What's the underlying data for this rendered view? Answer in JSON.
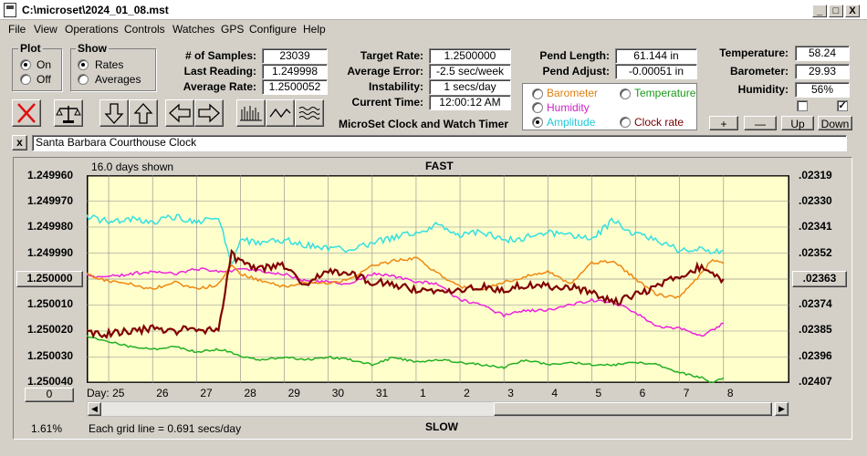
{
  "window": {
    "title": "C:\\microset\\2024_01_08.mst",
    "min": "_",
    "max": "□",
    "close": "X"
  },
  "menu": [
    "File",
    "View",
    "Operations",
    "Controls",
    "Watches",
    "GPS",
    "Configure",
    "Help"
  ],
  "plot_group": {
    "label": "Plot",
    "on": "On",
    "off": "Off",
    "selected": "On"
  },
  "show_group": {
    "label": "Show",
    "rates": "Rates",
    "averages": "Averages",
    "selected": "Rates"
  },
  "stats": {
    "samples_label": "# of Samples:",
    "samples": "23039",
    "last_reading_label": "Last Reading:",
    "last_reading": "1.249998",
    "average_rate_label": "Average Rate:",
    "average_rate": "1.2500052"
  },
  "targets": {
    "target_rate_label": "Target Rate:",
    "target_rate": "1.2500000",
    "average_error_label": "Average Error:",
    "average_error": "-2.5 sec/week",
    "instability_label": "Instability:",
    "instability": "1 secs/day",
    "current_time_label": "Current Time:",
    "current_time": "12:00:12 AM"
  },
  "app_name": "MicroSet Clock and Watch Timer",
  "pend": {
    "length_label": "Pend Length:",
    "length": "61.144 in",
    "adjust_label": "Pend Adjust:",
    "adjust": "-0.00051 in"
  },
  "series_select": {
    "barometer": "Barometer",
    "temperature": "Temperature",
    "humidity": "Humidity",
    "amplitude": "Amplitude",
    "clock_rate": "Clock rate",
    "selected": "Amplitude"
  },
  "environment": {
    "temperature_label": "Temperature:",
    "temperature": "58.24",
    "barometer_label": "Barometer:",
    "barometer": "29.93",
    "humidity_label": "Humidity:",
    "humidity": "56%",
    "check1": "",
    "check2": "✓"
  },
  "scale_buttons": {
    "plus": "+",
    "minus": "—",
    "up": "Up",
    "down": "Down"
  },
  "clock_name": {
    "close": "x",
    "value": "Santa Barbara Courthouse Clock"
  },
  "chart_header": {
    "days_shown": "16.0 days shown",
    "fast": "FAST",
    "slow": "SLOW"
  },
  "chart_footer": {
    "percent": "1.61%",
    "grid_note": "Each grid line = 0.691 secs/day",
    "day_label": "Day:"
  },
  "left_buttons": {
    "center": "1.250000",
    "zero": "0"
  },
  "right_button": ".02363",
  "colors": {
    "plot_bg": "#ffffcc",
    "rate": "#800000",
    "amplitude": "#33e0e0",
    "barometer": "#ee8811",
    "humidity": "#ee22dd",
    "temperature": "#22b022"
  },
  "chart_data": {
    "type": "line",
    "ylabels_left": [
      "1.249960",
      "1.249970",
      "1.249980",
      "1.249990",
      "1.250000",
      "1.250010",
      "1.250020",
      "1.250030",
      "1.250040"
    ],
    "ylabels_right": [
      ".02319",
      ".02330",
      ".02341",
      ".02352",
      ".02363",
      ".02374",
      ".02385",
      ".02396",
      ".02407"
    ],
    "ylim": [
      1.24996,
      1.25004
    ],
    "x_ticks": [
      "25",
      "26",
      "27",
      "28",
      "29",
      "30",
      "31",
      "1",
      "2",
      "3",
      "4",
      "5",
      "6",
      "7",
      "8"
    ],
    "x": [
      0,
      0.5,
      1,
      1.5,
      2,
      2.5,
      3,
      3.3,
      3.5,
      4,
      4.5,
      5,
      5.5,
      6,
      6.5,
      7,
      7.5,
      8,
      8.5,
      9,
      9.5,
      10,
      10.5,
      11,
      11.5,
      12,
      12.5,
      13,
      13.5,
      14,
      14.2,
      14.5
    ],
    "series": [
      {
        "key": "rate",
        "values": [
          1.250021,
          1.250021,
          1.25002,
          1.250019,
          1.25002,
          1.250019,
          1.25002,
          1.24999,
          1.249994,
          1.249996,
          1.249995,
          1.250002,
          1.249997,
          1.249998,
          1.250001,
          1.250002,
          1.250004,
          1.250005,
          1.250004,
          1.250003,
          1.250004,
          1.250002,
          1.250003,
          1.250003,
          1.250005,
          1.250009,
          1.250006,
          1.250003,
          1.249999,
          1.249995,
          1.249998,
          1.25
        ]
      },
      {
        "key": "amplitude",
        "values": [
          1.249976,
          1.249978,
          1.249977,
          1.249978,
          1.249976,
          1.249978,
          1.249976,
          1.249995,
          1.249985,
          1.249986,
          1.249985,
          1.249987,
          1.249988,
          1.249989,
          1.249986,
          1.249984,
          1.249982,
          1.249979,
          1.249983,
          1.249982,
          1.249985,
          1.249984,
          1.249982,
          1.249983,
          1.249985,
          1.249977,
          1.249983,
          1.249985,
          1.249989,
          1.249988,
          1.24999,
          1.249989
        ]
      },
      {
        "key": "barometer",
        "values": [
          1.249998,
          1.250001,
          1.250002,
          1.250004,
          1.250001,
          1.250004,
          1.250002,
          1.249995,
          1.249998,
          1.250001,
          1.250003,
          1.250001,
          1.250002,
          1.25,
          1.249995,
          1.249993,
          1.249992,
          1.249998,
          1.250003,
          1.250004,
          1.250001,
          1.249999,
          1.249997,
          1.250002,
          1.249994,
          1.249993,
          1.25,
          1.250006,
          1.250007,
          1.249998,
          1.249993,
          1.249994
        ]
      },
      {
        "key": "humidity",
        "values": [
          1.249999,
          1.249999,
          1.249998,
          1.249997,
          1.249998,
          1.249996,
          1.249997,
          1.249997,
          1.249996,
          1.249997,
          1.249998,
          1.250001,
          1.250001,
          1.250002,
          1.249998,
          1.249999,
          1.250001,
          1.250002,
          1.250008,
          1.25001,
          1.250014,
          1.250012,
          1.250012,
          1.25001,
          1.250008,
          1.250009,
          1.250013,
          1.250018,
          1.250019,
          1.250022,
          1.25002,
          1.250017
        ]
      },
      {
        "key": "temperature",
        "values": [
          1.250022,
          1.250024,
          1.250026,
          1.250027,
          1.250026,
          1.250028,
          1.250027,
          1.250028,
          1.25003,
          1.250031,
          1.25003,
          1.250031,
          1.25003,
          1.250031,
          1.250033,
          1.25003,
          1.250032,
          1.250031,
          1.250032,
          1.250033,
          1.250034,
          1.250031,
          1.250033,
          1.250032,
          1.250033,
          1.250033,
          1.250032,
          1.250033,
          1.250036,
          1.250038,
          1.25004,
          1.250038
        ]
      }
    ]
  }
}
